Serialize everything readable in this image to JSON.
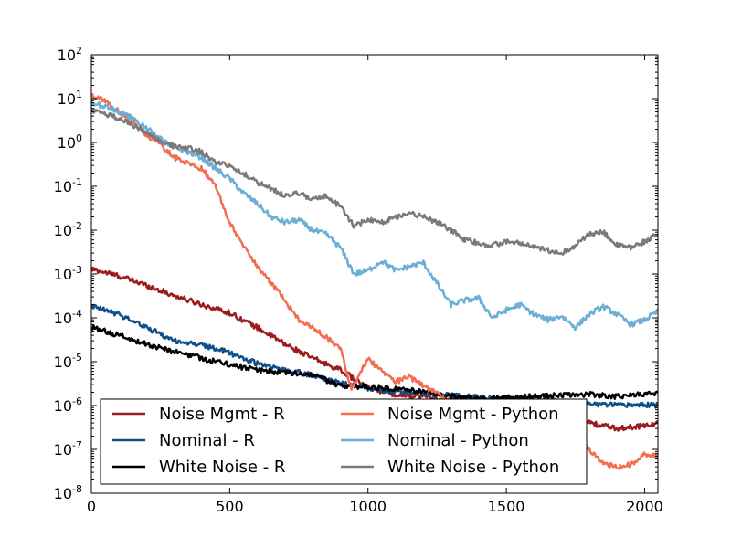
{
  "chart_data": {
    "type": "line",
    "title": "",
    "xlabel": "",
    "ylabel": "",
    "xlim": [
      0,
      2048
    ],
    "ylim": [
      1e-08,
      100
    ],
    "yscale": "log",
    "grid": false,
    "legend_location": "lower-left",
    "x_ticks": [
      {
        "value": 0,
        "label": "0"
      },
      {
        "value": 500,
        "label": "500"
      },
      {
        "value": 1000,
        "label": "1000"
      },
      {
        "value": 1500,
        "label": "1500"
      },
      {
        "value": 2000,
        "label": "2000"
      }
    ],
    "y_ticks": [
      {
        "value": 1e-08,
        "base": "10",
        "exp": "-8"
      },
      {
        "value": 1e-07,
        "base": "10",
        "exp": "-7"
      },
      {
        "value": 1e-06,
        "base": "10",
        "exp": "-6"
      },
      {
        "value": 1e-05,
        "base": "10",
        "exp": "-5"
      },
      {
        "value": 0.0001,
        "base": "10",
        "exp": "-4"
      },
      {
        "value": 0.001,
        "base": "10",
        "exp": "-3"
      },
      {
        "value": 0.01,
        "base": "10",
        "exp": "-2"
      },
      {
        "value": 0.1,
        "base": "10",
        "exp": "-1"
      },
      {
        "value": 1,
        "base": "10",
        "exp": "0"
      },
      {
        "value": 10,
        "base": "10",
        "exp": "1"
      },
      {
        "value": 100,
        "base": "10",
        "exp": "2"
      }
    ],
    "series": [
      {
        "name": "Noise Mgmt - R",
        "color": "#9b1b1e",
        "x": [
          0,
          100,
          200,
          300,
          400,
          500,
          600,
          700,
          800,
          900,
          1000,
          1100,
          1200,
          1300,
          1400,
          1500,
          1600,
          1700,
          1800,
          1900,
          2000,
          2048
        ],
        "y": [
          0.0013,
          0.0009,
          0.00055,
          0.00032,
          0.0002,
          0.00013,
          6e-05,
          2.5e-05,
          1.2e-05,
          6.5e-06,
          2.5e-06,
          1.8e-06,
          1.6e-06,
          1.3e-06,
          1.1e-06,
          9.5e-07,
          7.5e-07,
          6e-07,
          4e-07,
          3e-07,
          3.5e-07,
          4e-07
        ]
      },
      {
        "name": "Nominal - R",
        "color": "#0d4f8b",
        "x": [
          0,
          100,
          200,
          300,
          400,
          500,
          600,
          700,
          800,
          900,
          1000,
          1100,
          1200,
          1300,
          1400,
          1500,
          1600,
          1700,
          1800,
          1900,
          2000,
          2048
        ],
        "y": [
          0.00018,
          0.00012,
          6e-05,
          3e-05,
          2.4e-05,
          1.6e-05,
          9e-06,
          6.5e-06,
          5e-06,
          3.2e-06,
          2.5e-06,
          2.1e-06,
          1.9e-06,
          1.7e-06,
          1.5e-06,
          1.4e-06,
          1.3e-06,
          1.2e-06,
          1.1e-06,
          1e-06,
          1.05e-06,
          1e-06
        ]
      },
      {
        "name": "White Noise - R",
        "color": "#000000",
        "x": [
          0,
          100,
          200,
          300,
          400,
          500,
          600,
          700,
          800,
          900,
          1000,
          1100,
          1200,
          1300,
          1400,
          1500,
          1600,
          1700,
          1800,
          1900,
          2000,
          2048
        ],
        "y": [
          6e-05,
          4e-05,
          2.5e-05,
          1.7e-05,
          1.2e-05,
          8.5e-06,
          6.5e-06,
          5.5e-06,
          5e-06,
          2.8e-06,
          2.7e-06,
          2.4e-06,
          2.1e-06,
          1.6e-06,
          1.4e-06,
          1.5e-06,
          1.6e-06,
          1.7e-06,
          1.8e-06,
          1.6e-06,
          1.8e-06,
          2e-06
        ]
      },
      {
        "name": "Noise Mgmt - Python",
        "color": "#f26e4f",
        "x": [
          0,
          50,
          100,
          150,
          200,
          250,
          300,
          350,
          400,
          450,
          500,
          550,
          600,
          650,
          700,
          750,
          800,
          850,
          900,
          920,
          940,
          1000,
          1050,
          1100,
          1150,
          1200,
          1300,
          1400,
          1500,
          1600,
          1700,
          1800,
          1850,
          1900,
          1950,
          2000,
          2048
        ],
        "y": [
          12,
          9,
          5,
          3,
          1.5,
          0.9,
          0.45,
          0.35,
          0.25,
          0.1,
          0.015,
          0.0045,
          0.0015,
          0.0006,
          0.00025,
          9e-05,
          6e-05,
          3.5e-05,
          2e-05,
          7e-06,
          2.5e-06,
          1.2e-05,
          6e-06,
          3.5e-06,
          4.5e-06,
          2.8e-06,
          1.2e-06,
          9e-07,
          5e-07,
          3.5e-07,
          2.2e-07,
          1e-07,
          5e-08,
          4e-08,
          4.5e-08,
          8e-08,
          7e-08
        ]
      },
      {
        "name": "Nominal - Python",
        "color": "#6baed6",
        "x": [
          0,
          50,
          100,
          150,
          200,
          250,
          300,
          350,
          400,
          450,
          500,
          550,
          600,
          650,
          700,
          750,
          800,
          850,
          900,
          950,
          1000,
          1050,
          1100,
          1150,
          1200,
          1250,
          1300,
          1350,
          1400,
          1450,
          1500,
          1550,
          1600,
          1650,
          1700,
          1750,
          1800,
          1850,
          1900,
          1950,
          2000,
          2048
        ],
        "y": [
          8,
          6.5,
          5,
          3.5,
          2.2,
          1.2,
          0.8,
          0.6,
          0.45,
          0.25,
          0.15,
          0.07,
          0.04,
          0.02,
          0.015,
          0.017,
          0.01,
          0.008,
          0.004,
          0.001,
          0.0012,
          0.002,
          0.0012,
          0.0015,
          0.0018,
          0.0006,
          0.0002,
          0.00025,
          0.00028,
          0.0001,
          0.00015,
          0.0002,
          0.00012,
          9e-05,
          0.00011,
          6e-05,
          0.00012,
          0.00018,
          0.00012,
          7e-05,
          9e-05,
          0.00014
        ]
      },
      {
        "name": "White Noise - Python",
        "color": "#7a7a7a",
        "x": [
          0,
          50,
          100,
          150,
          200,
          250,
          300,
          350,
          400,
          450,
          500,
          550,
          600,
          650,
          700,
          750,
          800,
          850,
          900,
          950,
          1000,
          1050,
          1100,
          1150,
          1200,
          1250,
          1300,
          1350,
          1400,
          1450,
          1500,
          1550,
          1600,
          1650,
          1700,
          1750,
          1800,
          1850,
          1900,
          1950,
          2000,
          2048
        ],
        "y": [
          5.5,
          4.5,
          3.5,
          2.5,
          1.8,
          1.0,
          0.8,
          0.75,
          0.6,
          0.35,
          0.3,
          0.2,
          0.12,
          0.09,
          0.06,
          0.07,
          0.05,
          0.06,
          0.035,
          0.012,
          0.018,
          0.015,
          0.02,
          0.025,
          0.02,
          0.015,
          0.01,
          0.006,
          0.005,
          0.0045,
          0.0055,
          0.005,
          0.004,
          0.0035,
          0.003,
          0.0045,
          0.008,
          0.009,
          0.0045,
          0.004,
          0.0055,
          0.008
        ]
      }
    ]
  }
}
